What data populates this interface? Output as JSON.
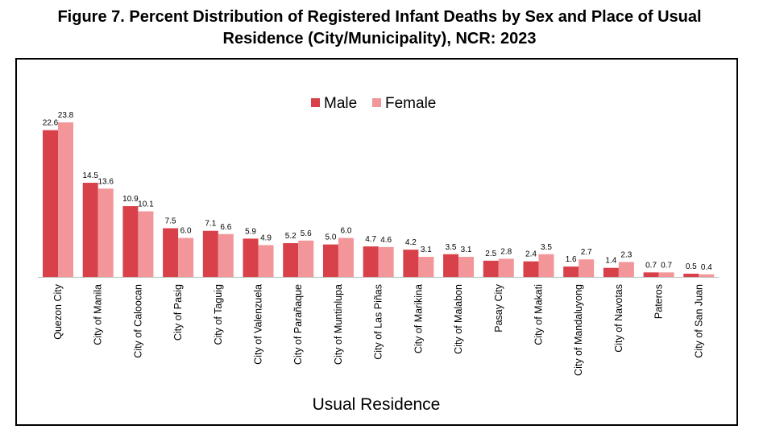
{
  "title_line1": "Figure 7. Percent Distribution of Registered Infant Deaths by Sex and Place of Usual",
  "title_line2": "Residence (City/Municipality), NCR: 2023",
  "chart_data": {
    "type": "bar",
    "xlabel": "Usual Residence",
    "ylabel": "",
    "ylim": [
      0,
      25
    ],
    "grid": false,
    "legend_position": "top",
    "categories": [
      "Quezon City",
      "City of Manila",
      "City of Caloocan",
      "City of Pasig",
      "City of Taguig",
      "City of Valenzuela",
      "City of Parañaque",
      "City of Muntinlupa",
      "City of Las Piñas",
      "City of Marikina",
      "City of Malabon",
      "Pasay City",
      "City of Makati",
      "City of Mandaluyong",
      "City of Navotas",
      "Pateros",
      "City of San Juan"
    ],
    "series": [
      {
        "name": "Male",
        "color": "#d9414a",
        "values": [
          22.6,
          14.5,
          10.9,
          7.5,
          7.1,
          5.9,
          5.2,
          5.0,
          4.7,
          4.2,
          3.5,
          2.5,
          2.4,
          1.6,
          1.4,
          0.7,
          0.5
        ]
      },
      {
        "name": "Female",
        "color": "#f2969a",
        "values": [
          23.8,
          13.6,
          10.1,
          6.0,
          6.6,
          4.9,
          5.6,
          6.0,
          4.6,
          3.1,
          3.1,
          2.8,
          3.5,
          2.7,
          2.3,
          0.7,
          0.4
        ]
      }
    ]
  }
}
